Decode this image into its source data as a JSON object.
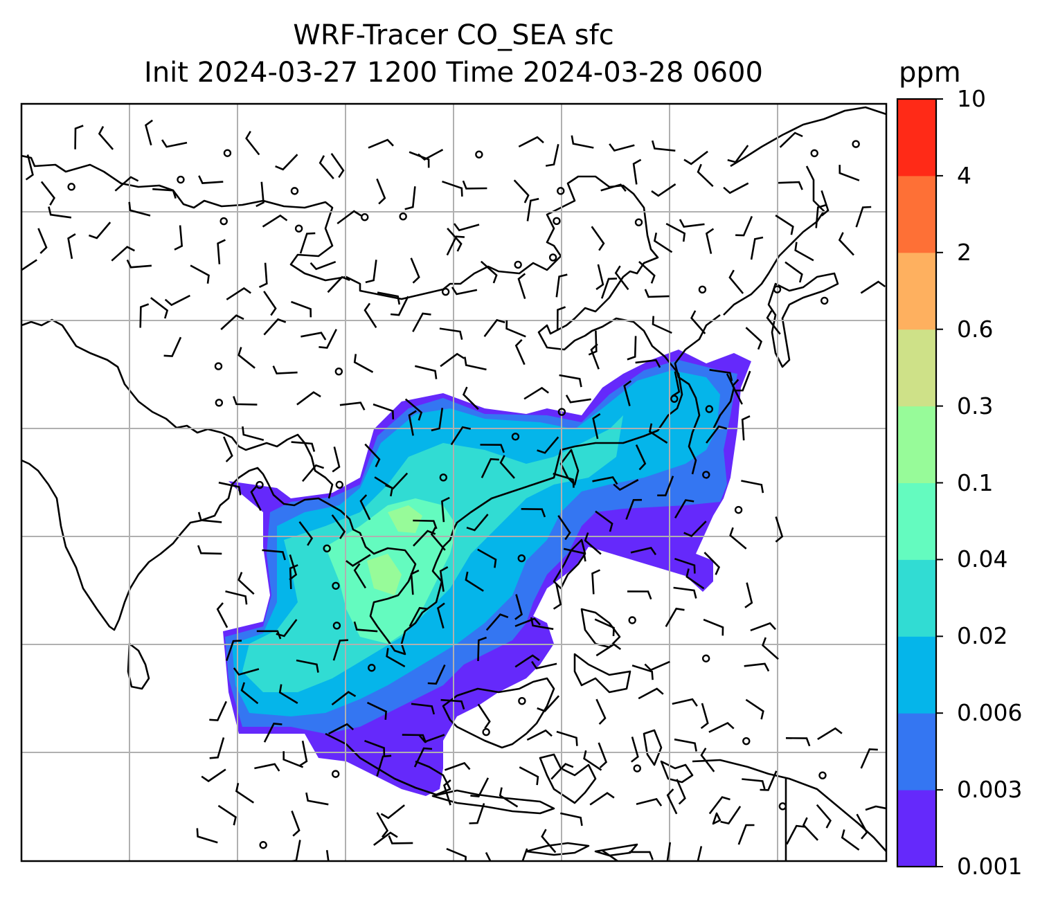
{
  "title": {
    "line1": "WRF-Tracer CO_SEA sfc",
    "line2": "Init 2024-03-27 1200 Time 2024-03-28 0600"
  },
  "colorbar": {
    "unit": "ppm",
    "ticks": [
      "0.001",
      "0.003",
      "0.006",
      "0.02",
      "0.04",
      "0.1",
      "0.3",
      "0.6",
      "2",
      "4",
      "10"
    ],
    "colors": [
      "#6529fb",
      "#3476f2",
      "#05b5ea",
      "#31dcd3",
      "#64fbbf",
      "#97fb99",
      "#cee188",
      "#feb05f",
      "#fe7036",
      "#ff2a17"
    ]
  },
  "map": {
    "field": "CO_SEA surface tracer concentration",
    "region": "South and East Asia",
    "gridlines": true,
    "overlay": "wind barbs",
    "coastline_color": "#000000",
    "grid_color": "#b0b0b0"
  }
}
